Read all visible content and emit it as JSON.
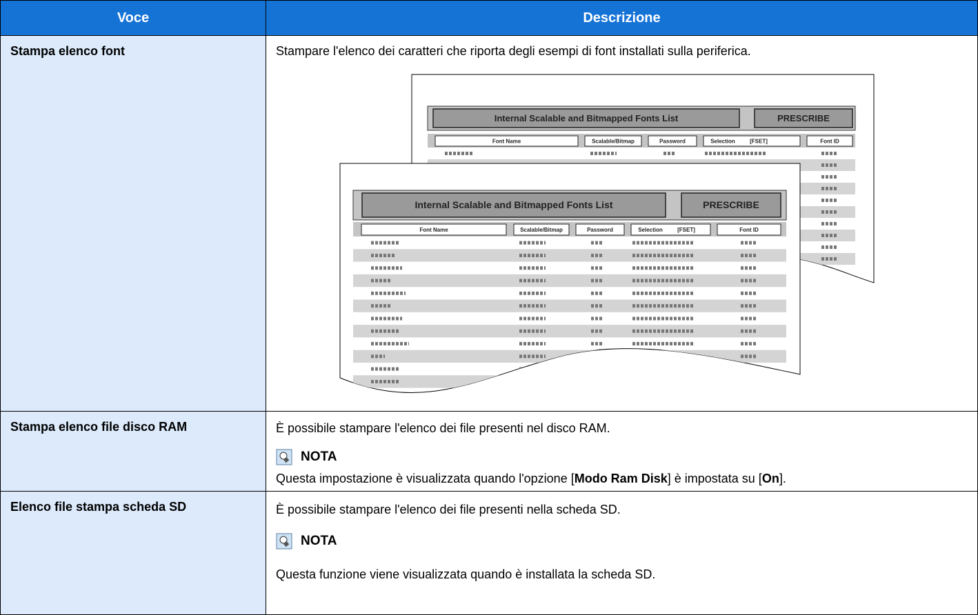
{
  "table": {
    "header": [
      "Voce",
      "Descrizione"
    ],
    "rows": [
      {
        "item": "Stampa elenco font",
        "description": "Stampare l'elenco dei caratteri che riporta degli esempi di font installati sulla periferica.",
        "illustration": {
          "title": "Internal Scalable and Bitmapped Fonts List",
          "badge": "PRESCRIBE",
          "columns": [
            "Font Name",
            "Scalable/Bitmap",
            "Password",
            "Selection",
            "[FSET]",
            "Font ID"
          ]
        }
      },
      {
        "item": "Stampa elenco file disco RAM",
        "description": "È possibile stampare l'elenco dei file presenti nel disco RAM.",
        "note_title": "NOTA",
        "note": [
          "Questa impostazione è visualizzata quando l'opzione [",
          "Modo Ram Disk",
          "] è impostata su [",
          "On",
          "]."
        ]
      },
      {
        "item": "Elenco file stampa scheda SD",
        "description": "È possibile stampare l'elenco dei file presenti nella scheda SD.",
        "note_title": "NOTA",
        "note": [
          "Questa funzione viene visualizzata quando è installata la scheda SD."
        ]
      }
    ]
  }
}
